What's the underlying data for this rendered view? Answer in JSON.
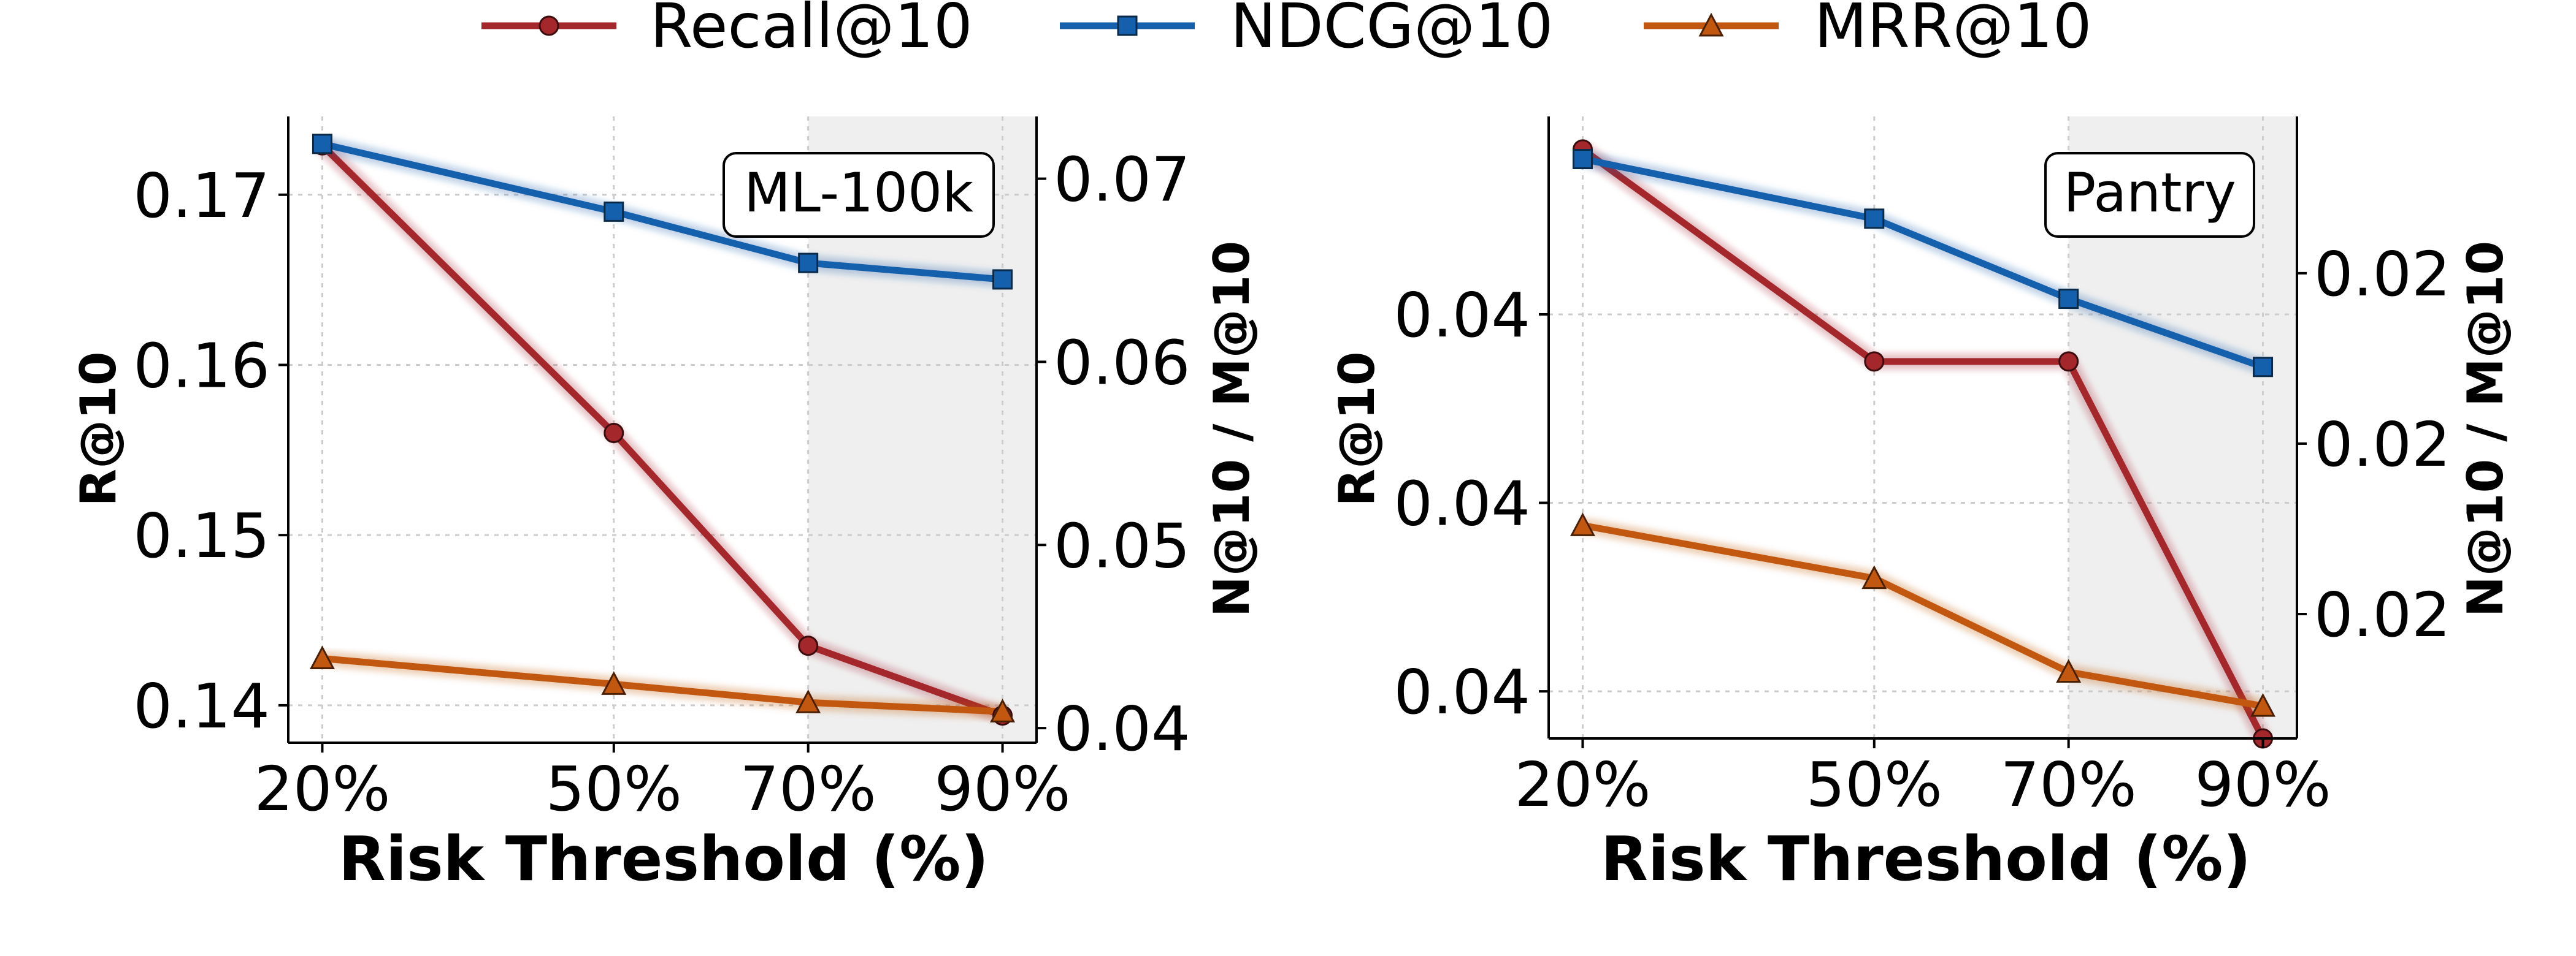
{
  "chart_data": [
    {
      "type": "line",
      "name": "left",
      "badge": "ML-100k",
      "xlabel": "Risk Threshold (%)",
      "ylabel": "R@10",
      "y2label": "N@10 / M@10",
      "x": [
        20,
        50,
        70,
        90
      ],
      "xticks": [
        "20%",
        "50%",
        "70%",
        "90%"
      ],
      "shaded_region": [
        70,
        93.5
      ],
      "xlim": [
        16.5,
        93.5
      ],
      "ylim": [
        0.1378,
        0.1746
      ],
      "y2lim": [
        0.0392,
        0.0734
      ],
      "yticks": [
        {
          "v": 0.14,
          "t": "0.14"
        },
        {
          "v": 0.15,
          "t": "0.15"
        },
        {
          "v": 0.16,
          "t": "0.16"
        },
        {
          "v": 0.17,
          "t": "0.17"
        }
      ],
      "y2ticks": [
        {
          "v": 0.04,
          "t": "0.04"
        },
        {
          "v": 0.05,
          "t": "0.05"
        },
        {
          "v": 0.06,
          "t": "0.06"
        },
        {
          "v": 0.07,
          "t": "0.07"
        }
      ],
      "series": [
        {
          "name": "Recall@10",
          "axis": "left",
          "values": [
            0.1729,
            0.156,
            0.1435,
            0.1394
          ]
        },
        {
          "name": "NDCG@10",
          "axis": "right",
          "values": [
            0.0719,
            0.0682,
            0.0654,
            0.0645
          ]
        },
        {
          "name": "MRR@10",
          "axis": "right",
          "values": [
            0.0438,
            0.0424,
            0.0414,
            0.0409
          ]
        }
      ]
    },
    {
      "type": "line",
      "name": "right",
      "badge": "Pantry",
      "xlabel": "Risk Threshold (%)",
      "ylabel": "R@10",
      "y2label": "N@10 / M@10",
      "x": [
        20,
        50,
        70,
        90
      ],
      "xticks": [
        "20%",
        "50%",
        "70%",
        "90%"
      ],
      "shaded_region": [
        70,
        93.5
      ],
      "xlim": [
        16.5,
        93.5
      ],
      "ylim": [
        0.0381,
        0.0447
      ],
      "y2lim": [
        0.01797,
        0.02162
      ],
      "yticks": [
        {
          "v": 0.0386,
          "t": "0.04"
        },
        {
          "v": 0.0406,
          "t": "0.04"
        },
        {
          "v": 0.0426,
          "t": "0.04"
        }
      ],
      "y2ticks": [
        {
          "v": 0.0187,
          "t": "0.02"
        },
        {
          "v": 0.0197,
          "t": "0.02"
        },
        {
          "v": 0.0207,
          "t": "0.02"
        }
      ],
      "series": [
        {
          "name": "Recall@10",
          "axis": "left",
          "values": [
            0.04435,
            0.0421,
            0.0421,
            0.0381
          ]
        },
        {
          "name": "NDCG@10",
          "axis": "right",
          "values": [
            0.02137,
            0.02102,
            0.02055,
            0.02015
          ]
        },
        {
          "name": "MRR@10",
          "axis": "right",
          "values": [
            0.01922,
            0.01891,
            0.01836,
            0.01816
          ]
        }
      ]
    }
  ],
  "legend": [
    {
      "name": "Recall@10",
      "color": "#a3272b",
      "marker": "circle"
    },
    {
      "name": "NDCG@10",
      "color": "#1560ad",
      "marker": "square"
    },
    {
      "name": "MRR@10",
      "color": "#c2580f",
      "marker": "triangle"
    }
  ]
}
